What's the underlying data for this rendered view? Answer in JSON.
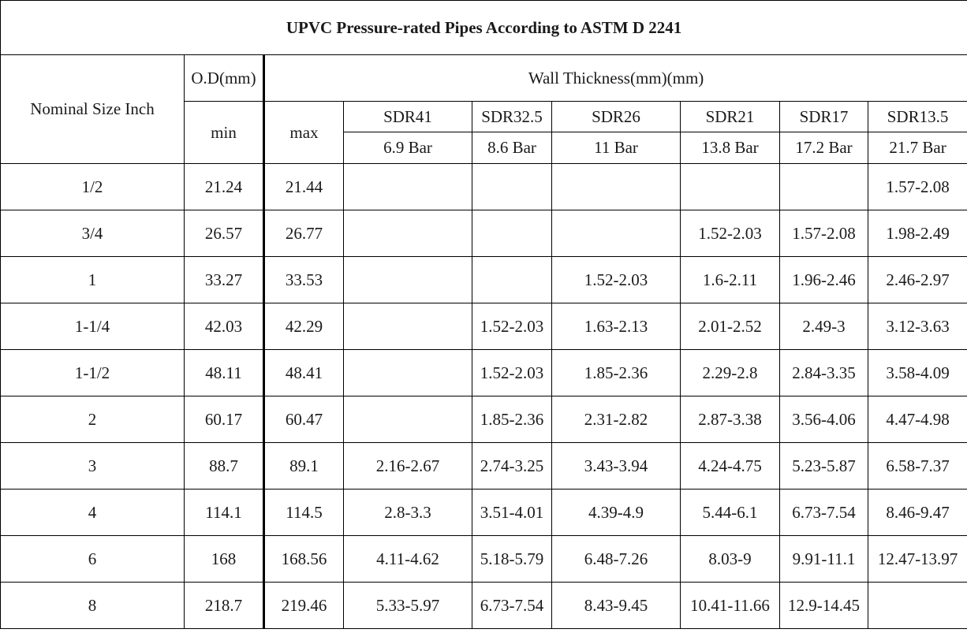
{
  "title": "UPVC Pressure-rated Pipes According to ASTM D 2241",
  "header": {
    "nominal": "Nominal Size Inch",
    "od": "O.D(mm)",
    "min": "min",
    "max": "max",
    "wall": "Wall Thickness(mm)(mm)",
    "sdr": [
      "SDR41",
      "SDR32.5",
      "SDR26",
      "SDR21",
      "SDR17",
      "SDR13.5"
    ],
    "bar": [
      "6.9 Bar",
      "8.6 Bar",
      "11 Bar",
      "13.8 Bar",
      "17.2 Bar",
      "21.7 Bar"
    ]
  },
  "rows": [
    [
      "1/2",
      "21.24",
      "21.44",
      "",
      "",
      "",
      "",
      "",
      "1.57-2.08"
    ],
    [
      "3/4",
      "26.57",
      "26.77",
      "",
      "",
      "",
      "1.52-2.03",
      "1.57-2.08",
      "1.98-2.49"
    ],
    [
      "1",
      "33.27",
      "33.53",
      "",
      "",
      "1.52-2.03",
      "1.6-2.11",
      "1.96-2.46",
      "2.46-2.97"
    ],
    [
      "1-1/4",
      "42.03",
      "42.29",
      "",
      "1.52-2.03",
      "1.63-2.13",
      "2.01-2.52",
      "2.49-3",
      "3.12-3.63"
    ],
    [
      "1-1/2",
      "48.11",
      "48.41",
      "",
      "1.52-2.03",
      "1.85-2.36",
      "2.29-2.8",
      "2.84-3.35",
      "3.58-4.09"
    ],
    [
      "2",
      "60.17",
      "60.47",
      "",
      "1.85-2.36",
      "2.31-2.82",
      "2.87-3.38",
      "3.56-4.06",
      "4.47-4.98"
    ],
    [
      "3",
      "88.7",
      "89.1",
      "2.16-2.67",
      "2.74-3.25",
      "3.43-3.94",
      "4.24-4.75",
      "5.23-5.87",
      "6.58-7.37"
    ],
    [
      "4",
      "114.1",
      "114.5",
      "2.8-3.3",
      "3.51-4.01",
      "4.39-4.9",
      "5.44-6.1",
      "6.73-7.54",
      "8.46-9.47"
    ],
    [
      "6",
      "168",
      "168.56",
      "4.11-4.62",
      "5.18-5.79",
      "6.48-7.26",
      "8.03-9",
      "9.91-11.1",
      "12.47-13.97"
    ],
    [
      "8",
      "218.7",
      "219.46",
      "5.33-5.97",
      "6.73-7.54",
      "8.43-9.45",
      "10.41-11.66",
      "12.9-14.45",
      ""
    ]
  ]
}
